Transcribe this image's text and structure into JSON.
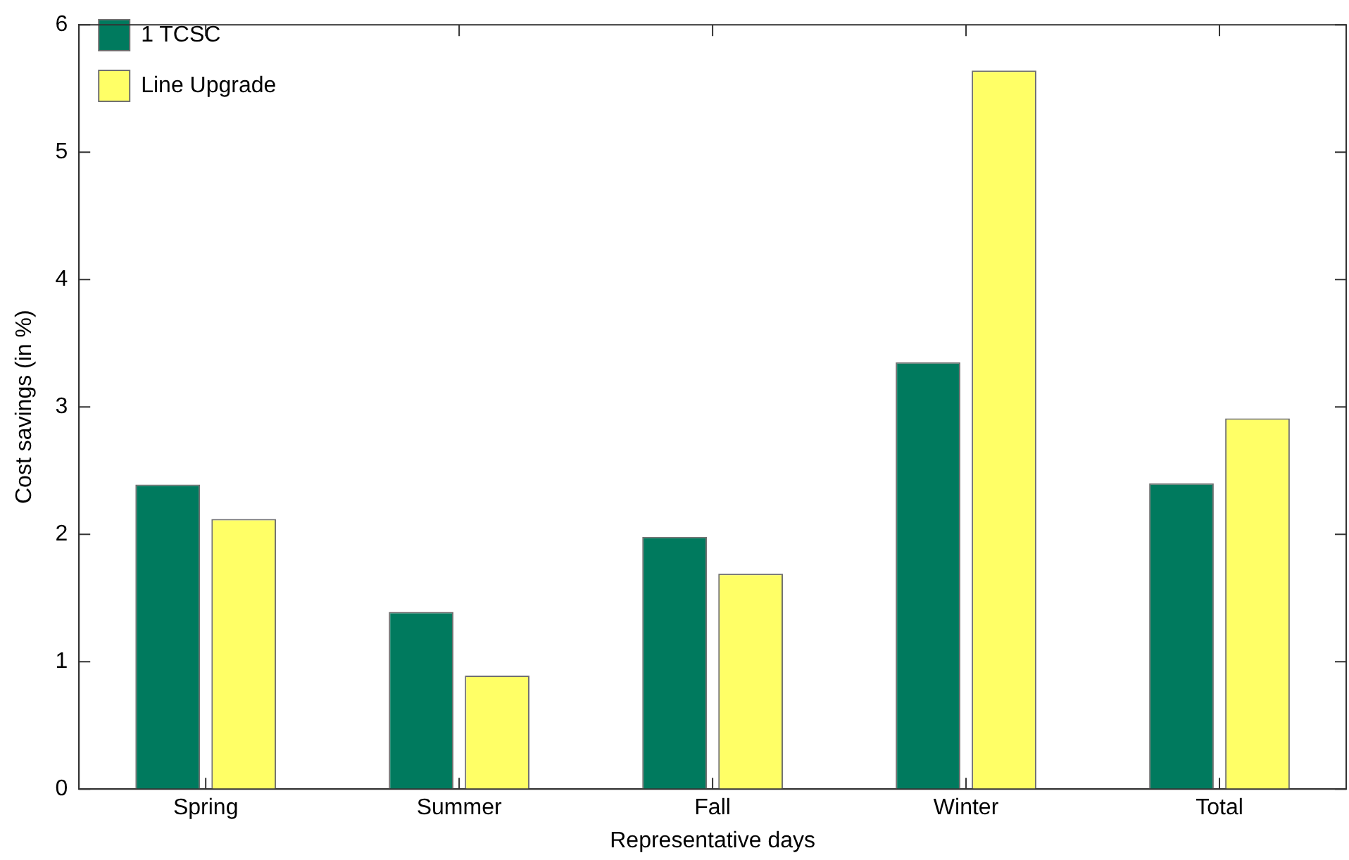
{
  "chart_data": {
    "type": "bar",
    "xlabel": "Representative days",
    "ylabel": "Cost savings (in %)",
    "categories": [
      "Spring",
      "Summer",
      "Fall",
      "Winter",
      "Total"
    ],
    "series": [
      {
        "name": "1 TCSC",
        "color": "#007a5e",
        "values": [
          2.39,
          1.39,
          1.98,
          3.35,
          2.4
        ]
      },
      {
        "name": "Line Upgrade",
        "color": "#ffff66",
        "values": [
          2.12,
          0.89,
          1.69,
          5.64,
          2.91
        ]
      }
    ],
    "ylim": [
      0,
      6
    ],
    "yticks": [
      0,
      1,
      2,
      3,
      4,
      5,
      6
    ],
    "grid": false,
    "legend": "top left"
  }
}
